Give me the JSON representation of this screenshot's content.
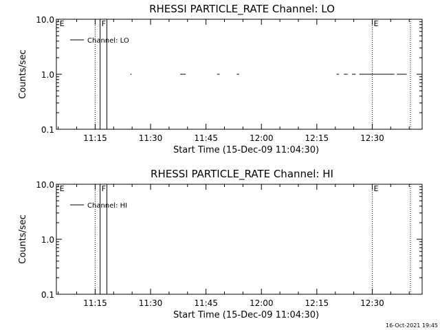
{
  "footer": "16-Oct-2021 19:45",
  "chart_data": [
    {
      "type": "line",
      "title": "RHESSI PARTICLE_RATE Channel: LO",
      "xlabel": "Start Time (15-Dec-09 11:04:30)",
      "ylabel": "Counts/sec",
      "xlim": [
        "11:04:30",
        "12:43:30"
      ],
      "ylim": [
        0.1,
        10.0
      ],
      "yscale": "log",
      "x_ticks": [
        "11:15",
        "11:30",
        "11:45",
        "12:00",
        "12:15",
        "12:30"
      ],
      "y_ticks": [
        "0.1",
        "1.0",
        "10.0"
      ],
      "legend": {
        "placement": "top-left",
        "entries": [
          "Channel: LO"
        ]
      },
      "series": [
        {
          "name": "Channel: LO",
          "color": "#000000",
          "segments": [
            {
              "x": [
                "11:24:30",
                "11:24:50"
              ],
              "y": [
                1.0,
                1.0
              ]
            },
            {
              "x": [
                "11:38:00",
                "11:39:30"
              ],
              "y": [
                1.0,
                1.0
              ]
            },
            {
              "x": [
                "11:48:00",
                "11:48:40"
              ],
              "y": [
                1.0,
                1.0
              ]
            },
            {
              "x": [
                "11:53:20",
                "11:54:00"
              ],
              "y": [
                1.0,
                1.0
              ]
            },
            {
              "x": [
                "12:20:20",
                "12:21:00"
              ],
              "y": [
                1.0,
                1.0
              ]
            },
            {
              "x": [
                "12:22:20",
                "12:23:20"
              ],
              "y": [
                1.0,
                1.0
              ]
            },
            {
              "x": [
                "12:24:30",
                "12:25:30"
              ],
              "y": [
                1.0,
                1.0
              ]
            },
            {
              "x": [
                "12:26:30",
                "12:36:00"
              ],
              "y": [
                1.0,
                1.0
              ]
            },
            {
              "x": [
                "12:36:40",
                "12:39:20"
              ],
              "y": [
                1.0,
                1.0
              ]
            }
          ]
        }
      ],
      "markers": [
        {
          "label": "E",
          "x": "11:05:00",
          "line": "none"
        },
        {
          "label": "",
          "x": "11:15:00",
          "line": "dotted"
        },
        {
          "label": "F",
          "x": "11:16:20",
          "line": "solid"
        },
        {
          "label": "",
          "x": "11:18:10",
          "line": "solid"
        },
        {
          "label": "E",
          "x": "12:30:00",
          "line": "dotted"
        },
        {
          "label": "",
          "x": "12:40:20",
          "line": "dotted"
        }
      ]
    },
    {
      "type": "line",
      "title": "RHESSI PARTICLE_RATE Channel: HI",
      "xlabel": "Start Time (15-Dec-09 11:04:30)",
      "ylabel": "Counts/sec",
      "xlim": [
        "11:04:30",
        "12:43:30"
      ],
      "ylim": [
        0.1,
        10.0
      ],
      "yscale": "log",
      "x_ticks": [
        "11:15",
        "11:30",
        "11:45",
        "12:00",
        "12:15",
        "12:30"
      ],
      "y_ticks": [
        "0.1",
        "1.0",
        "10.0"
      ],
      "legend": {
        "placement": "top-left",
        "entries": [
          "Channel: HI"
        ]
      },
      "series": [
        {
          "name": "Channel: HI",
          "color": "#000000",
          "segments": []
        }
      ],
      "markers": [
        {
          "label": "E",
          "x": "11:05:00",
          "line": "none"
        },
        {
          "label": "",
          "x": "11:15:00",
          "line": "dotted"
        },
        {
          "label": "F",
          "x": "11:16:20",
          "line": "solid"
        },
        {
          "label": "",
          "x": "11:18:10",
          "line": "solid"
        },
        {
          "label": "E",
          "x": "12:30:00",
          "line": "dotted"
        },
        {
          "label": "",
          "x": "12:40:20",
          "line": "dotted"
        }
      ]
    }
  ]
}
